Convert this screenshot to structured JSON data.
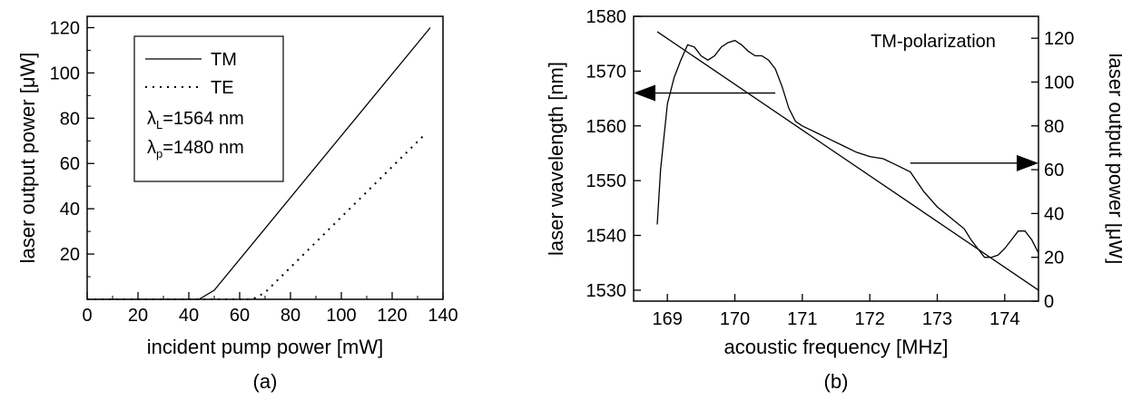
{
  "chart_data": [
    {
      "type": "line",
      "panel_label": "(a)",
      "xlabel": "incident pump power [mW]",
      "ylabel": "laser output power [μW]",
      "xlim": [
        0,
        140
      ],
      "ylim": [
        0,
        125
      ],
      "x_ticks": [
        "0",
        "20",
        "40",
        "60",
        "80",
        "100",
        "120",
        "140"
      ],
      "y_ticks": [
        "20",
        "40",
        "60",
        "80",
        "100",
        "120"
      ],
      "series": [
        {
          "name": "TM",
          "style": "solid",
          "x": [
            0,
            44,
            50,
            135
          ],
          "y": [
            0,
            0,
            4,
            120
          ]
        },
        {
          "name": "TE",
          "style": "dotted",
          "x": [
            0,
            65,
            70,
            133
          ],
          "y": [
            0,
            0,
            3,
            73
          ]
        }
      ],
      "legend": {
        "position": "top-left",
        "entries": [
          "TM",
          "TE"
        ],
        "notes": [
          {
            "symbol": "λ",
            "sub": "L",
            "value": "=1564 nm"
          },
          {
            "symbol": "λ",
            "sub": "p",
            "value": "=1480 nm"
          }
        ]
      },
      "grid": false
    },
    {
      "type": "line",
      "panel_label": "(b)",
      "title": "TM-polarization",
      "xlabel": "acoustic frequency [MHz]",
      "ylabel": "laser wavelength [nm]",
      "y2label": "laser output power [μW]",
      "xlim": [
        168.5,
        174.5
      ],
      "ylim": [
        1528,
        1580
      ],
      "y2lim": [
        0,
        130
      ],
      "x_ticks": [
        "169",
        "170",
        "171",
        "172",
        "173",
        "174"
      ],
      "y_ticks": [
        "1530",
        "1540",
        "1550",
        "1560",
        "1570",
        "1580"
      ],
      "y2_ticks": [
        "0",
        "20",
        "40",
        "60",
        "80",
        "100",
        "120"
      ],
      "series": [
        {
          "name": "laser wavelength",
          "axis": "left",
          "x": [
            168.85,
            174.5
          ],
          "y": [
            1577.2,
            1530
          ]
        },
        {
          "name": "laser output power",
          "axis": "right",
          "x": [
            168.85,
            168.9,
            169.0,
            169.1,
            169.2,
            169.3,
            169.4,
            169.5,
            169.6,
            169.7,
            169.8,
            169.9,
            170.0,
            170.1,
            170.2,
            170.3,
            170.4,
            170.5,
            170.6,
            170.7,
            170.8,
            170.9,
            171.0,
            171.2,
            171.4,
            171.6,
            171.8,
            172.0,
            172.2,
            172.4,
            172.6,
            172.8,
            173.0,
            173.2,
            173.4,
            173.5,
            173.6,
            173.7,
            173.8,
            173.9,
            174.0,
            174.1,
            174.2,
            174.3,
            174.4,
            174.5
          ],
          "y": [
            35,
            60,
            90,
            102,
            110,
            117,
            116,
            112,
            110,
            112,
            116,
            118,
            119,
            117,
            114,
            112,
            112,
            110,
            106,
            98,
            88,
            82,
            80,
            77,
            74,
            71,
            68,
            66,
            65,
            62,
            59,
            50,
            43,
            38,
            33,
            28,
            24,
            20,
            20,
            21,
            24,
            28,
            32,
            32,
            28,
            22
          ]
        }
      ],
      "arrows": [
        {
          "points_to": "left axis",
          "from_x": 170.6,
          "at": 1566
        },
        {
          "points_to": "right axis",
          "from_x": 172.6,
          "at": 63
        }
      ],
      "grid": false
    }
  ]
}
